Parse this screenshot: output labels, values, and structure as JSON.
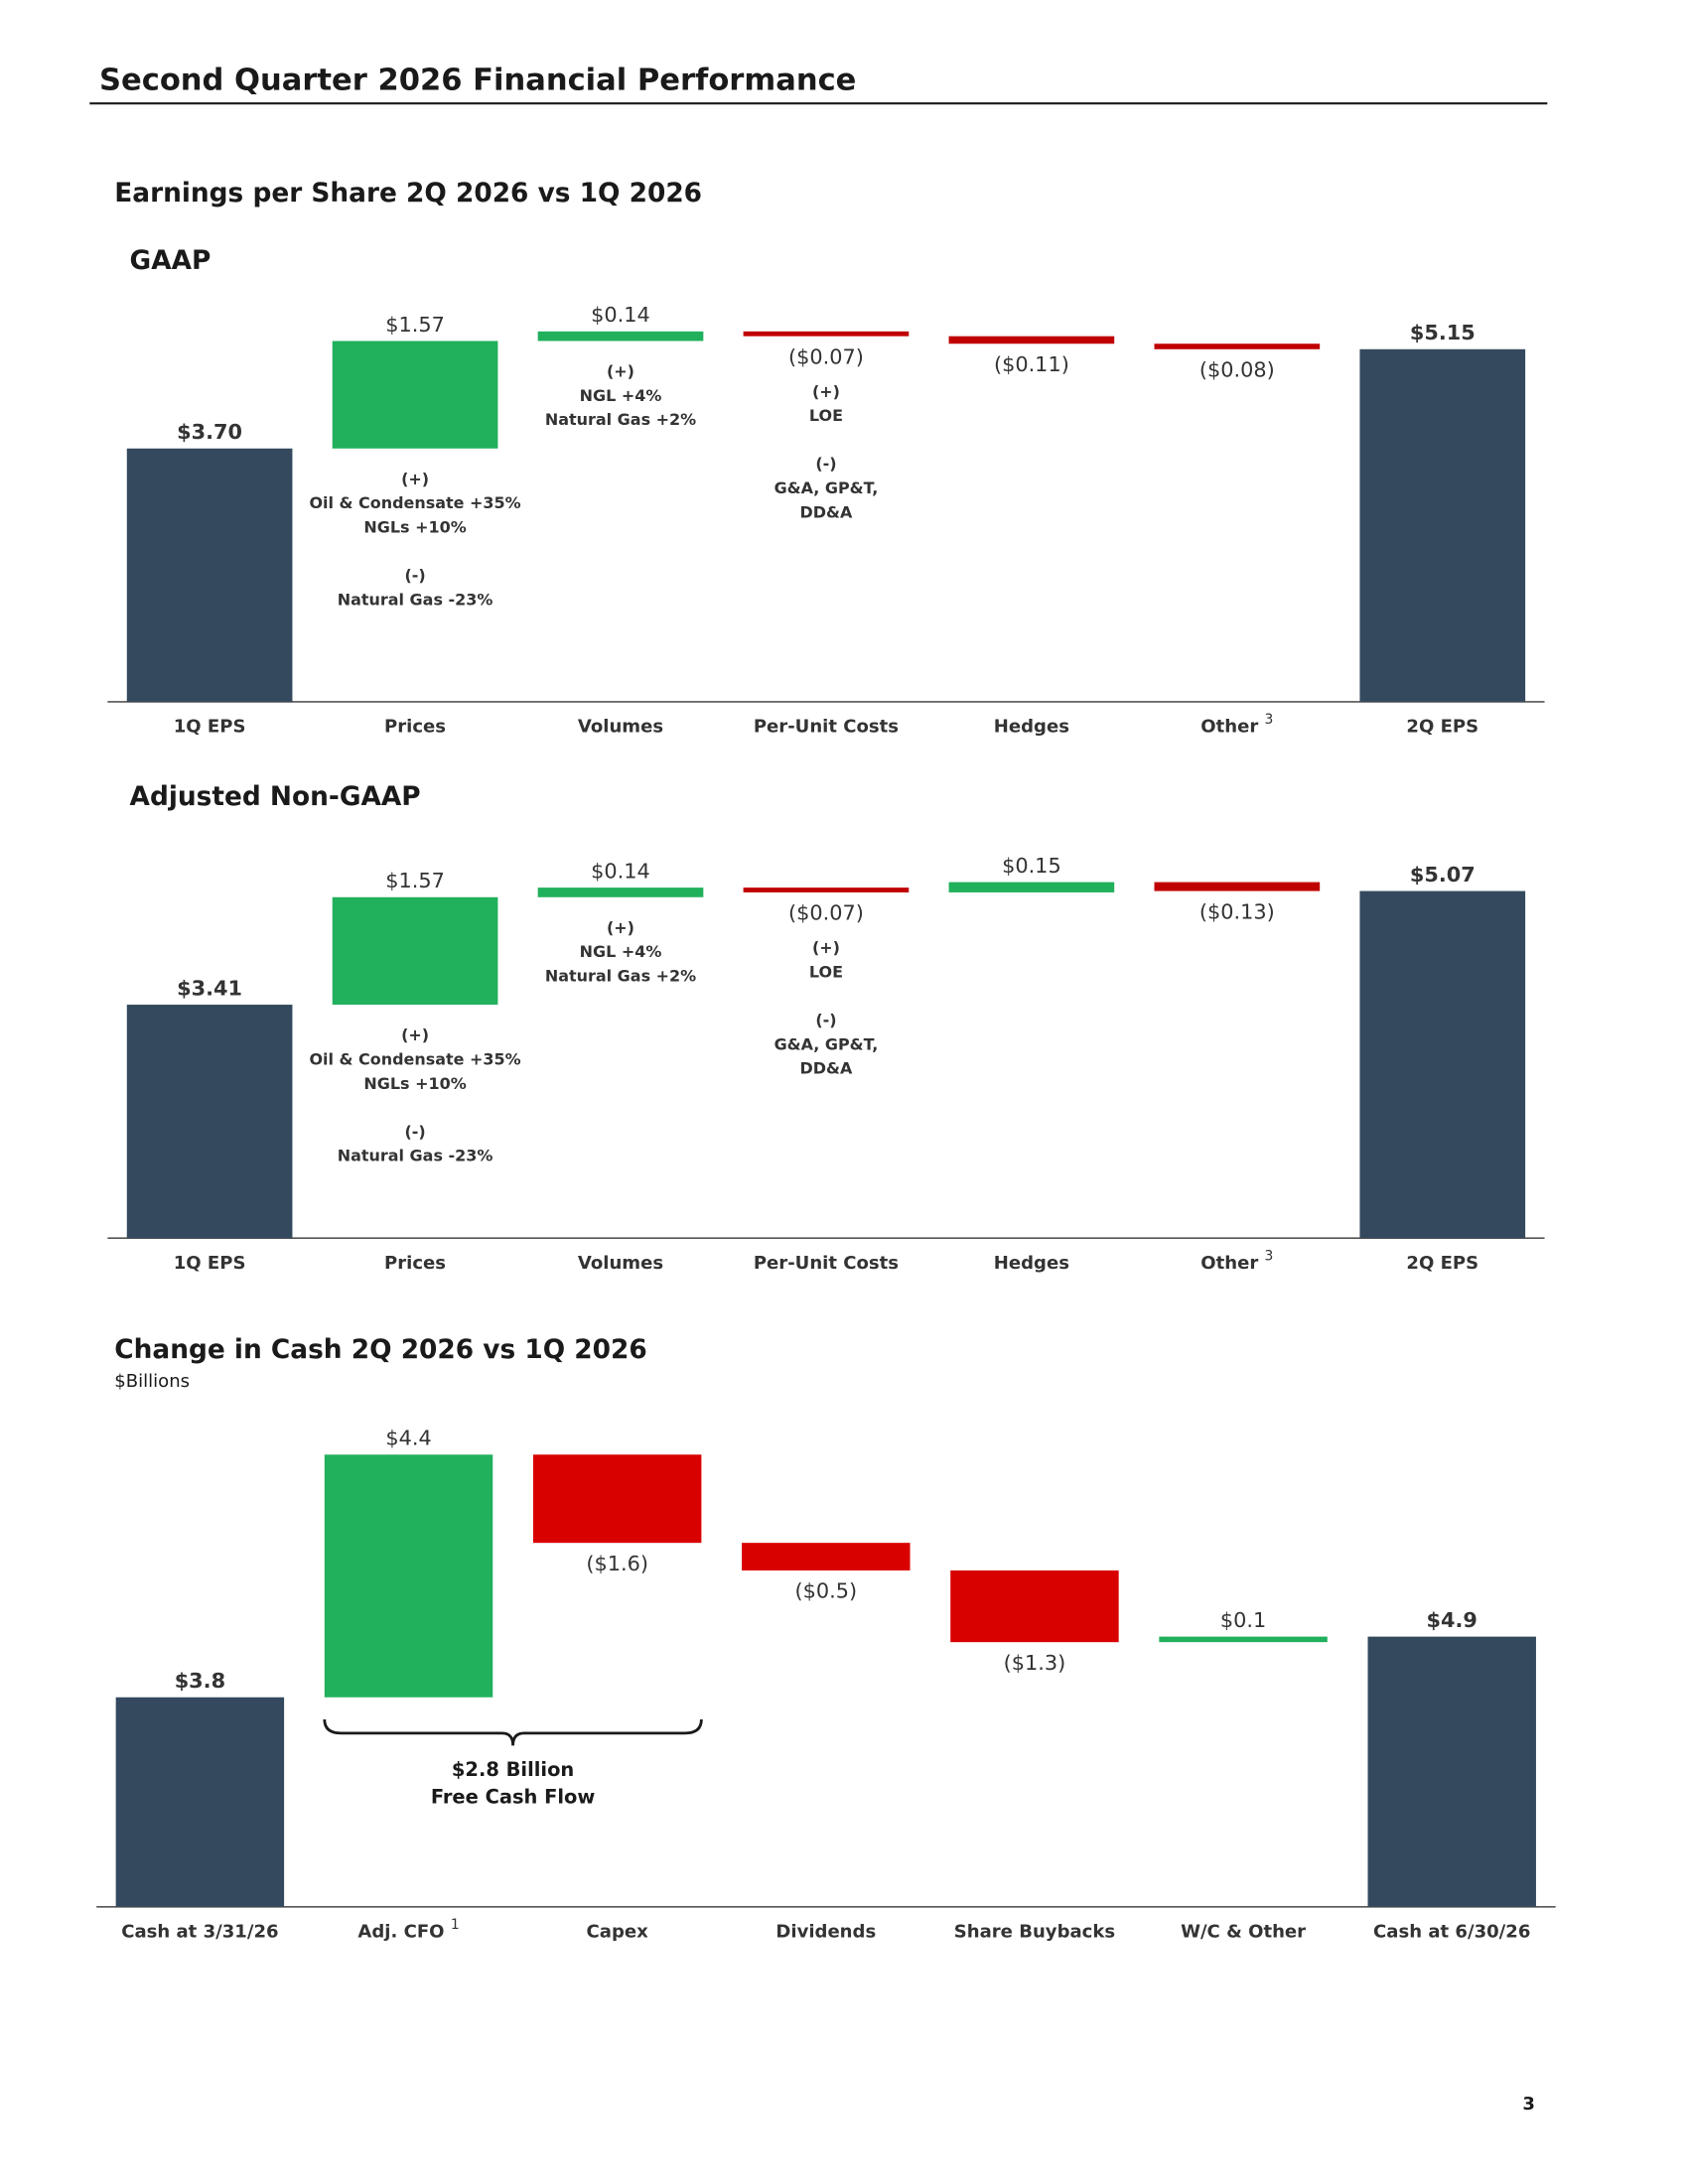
{
  "title": "Second Quarter 2026 Financial Performance",
  "page_number": "3",
  "section_title": "Earnings per Share 2Q 2026 vs 1Q 2026",
  "chart_data": [
    {
      "type": "waterfall",
      "title": "GAAP",
      "categories": [
        "1Q EPS",
        "Prices",
        "Volumes",
        "Per-Unit Costs",
        "Hedges",
        "Other",
        "2Q EPS"
      ],
      "category_notes": [
        null,
        null,
        null,
        null,
        null,
        "3",
        null
      ],
      "measures": [
        "total",
        "relative",
        "relative",
        "relative",
        "relative",
        "relative",
        "total"
      ],
      "values": [
        3.7,
        1.57,
        0.14,
        -0.07,
        -0.11,
        -0.08,
        5.15
      ],
      "value_labels": [
        "$3.70",
        "$1.57",
        "$0.14",
        "($0.07)",
        "($0.11)",
        "($0.08)",
        "$5.15"
      ],
      "notes": [
        null,
        [
          [
            "(+)",
            "Oil & Condensate +35%",
            "NGLs +10%"
          ],
          [
            "(-)",
            "Natural Gas -23%"
          ]
        ],
        [
          [
            "(+)",
            "NGL +4%",
            "Natural Gas +2%"
          ]
        ],
        [
          [
            "(+)",
            "LOE"
          ],
          [
            "(-)",
            "G&A, GP&T,",
            "DD&A"
          ]
        ],
        null,
        null,
        null
      ],
      "total_color": "#34495e",
      "increase_color": "#21b05c",
      "decrease_color": "#c00000",
      "ylim": [
        0,
        5.8
      ]
    },
    {
      "type": "waterfall",
      "title": "Adjusted Non-GAAP",
      "categories": [
        "1Q EPS",
        "Prices",
        "Volumes",
        "Per-Unit Costs",
        "Hedges",
        "Other",
        "2Q EPS"
      ],
      "category_notes": [
        null,
        null,
        null,
        null,
        null,
        "3",
        null
      ],
      "measures": [
        "total",
        "relative",
        "relative",
        "relative",
        "relative",
        "relative",
        "total"
      ],
      "values": [
        3.41,
        1.57,
        0.14,
        -0.07,
        0.15,
        -0.13,
        5.07
      ],
      "value_labels": [
        "$3.41",
        "$1.57",
        "$0.14",
        "($0.07)",
        "$0.15",
        "($0.13)",
        "$5.07"
      ],
      "notes": [
        null,
        [
          [
            "(+)",
            "Oil & Condensate +35%",
            "NGLs +10%"
          ],
          [
            "(-)",
            "Natural Gas -23%"
          ]
        ],
        [
          [
            "(+)",
            "NGL +4%",
            "Natural Gas +2%"
          ]
        ],
        [
          [
            "(+)",
            "LOE"
          ],
          [
            "(-)",
            "G&A, GP&T,",
            "DD&A"
          ]
        ],
        null,
        null,
        null
      ],
      "total_color": "#34495e",
      "increase_color": "#21b05c",
      "decrease_color": "#c00000",
      "ylim": [
        0,
        5.8
      ]
    },
    {
      "type": "waterfall",
      "title": "Change in Cash 2Q 2026 vs 1Q 2026",
      "subtitle": "$Billions",
      "categories": [
        "Cash at 3/31/26",
        "Adj. CFO",
        "Capex",
        "Dividends",
        "Share Buybacks",
        "W/C & Other",
        "Cash at 6/30/26"
      ],
      "category_notes": [
        null,
        "1",
        null,
        null,
        null,
        null,
        null
      ],
      "measures": [
        "total",
        "relative",
        "relative",
        "relative",
        "relative",
        "relative",
        "total"
      ],
      "values": [
        3.8,
        4.4,
        -1.6,
        -0.5,
        -1.3,
        0.1,
        4.9
      ],
      "value_labels": [
        "$3.8",
        "$4.4",
        "($1.6)",
        "($0.5)",
        "($1.3)",
        "$0.1",
        "$4.9"
      ],
      "brace_label": [
        "$2.8 Billion",
        "Free Cash Flow"
      ],
      "total_color": "#34495e",
      "increase_color": "#21b05c",
      "decrease_color": "#d90000",
      "ylim": [
        0,
        8.5
      ]
    }
  ]
}
